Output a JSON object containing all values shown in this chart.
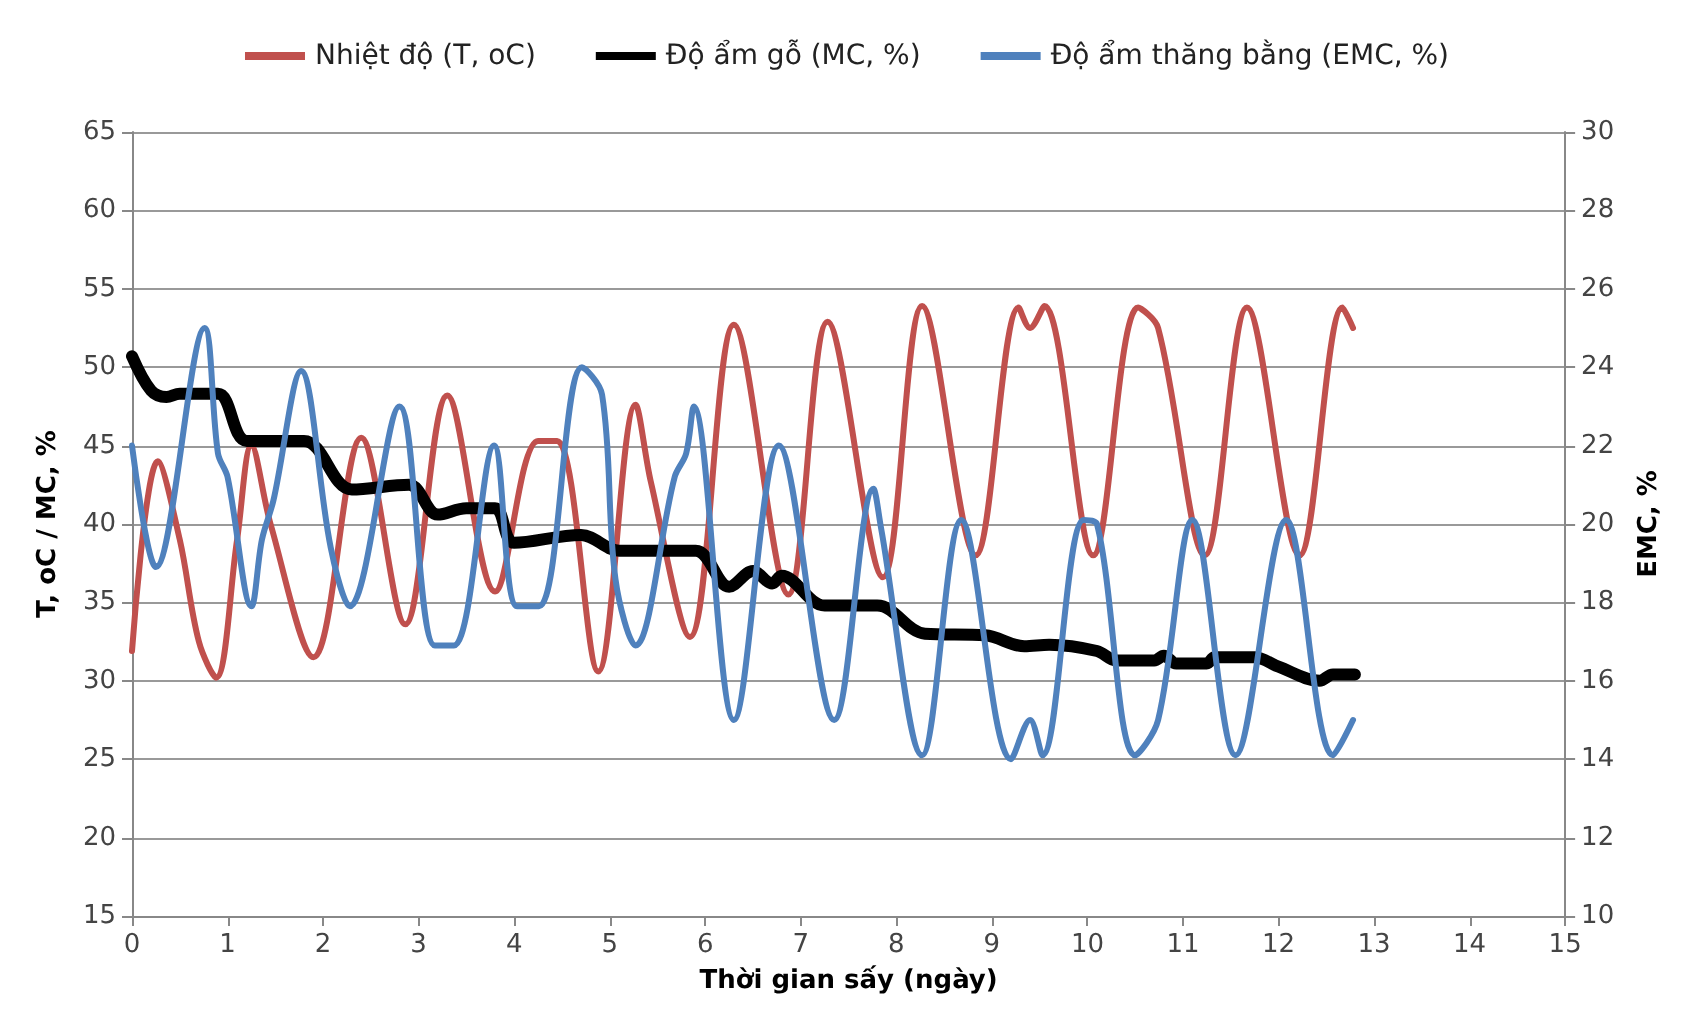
{
  "chart_data": {
    "type": "line",
    "xlabel": "Thời gian sấy (ngày)",
    "ylabel": "T, oC / MC, %",
    "y2label": "EMC, %",
    "xlim": [
      0,
      15
    ],
    "xticks": [
      0,
      1,
      2,
      3,
      4,
      5,
      6,
      7,
      8,
      9,
      10,
      11,
      12,
      13,
      14,
      15
    ],
    "ylim": [
      15,
      65
    ],
    "yticks": [
      15,
      20,
      25,
      30,
      35,
      40,
      45,
      50,
      55,
      60,
      65
    ],
    "y2lim": [
      10,
      30
    ],
    "y2ticks": [
      10,
      12,
      14,
      16,
      18,
      20,
      22,
      24,
      26,
      28,
      30
    ],
    "grid": "y",
    "legend": "top",
    "marker": "none",
    "line_style": "solid",
    "series": [
      {
        "name": "Nhiệt độ (T, oC)",
        "color": "#c0504d",
        "x": [
          0,
          0.27,
          0.5,
          0.7,
          0.88,
          1.1,
          1.25,
          1.45,
          1.9,
          2.4,
          2.86,
          3.3,
          3.8,
          4.25,
          4.45,
          4.88,
          5.27,
          5.43,
          5.84,
          6.3,
          6.87,
          7.28,
          7.86,
          8.27,
          8.83,
          9.28,
          9.4,
          9.55,
          10.06,
          10.53,
          10.74,
          11.23,
          11.67,
          12.22,
          12.67,
          12.78
        ],
        "values": [
          31.9,
          44,
          39,
          32.5,
          30.2,
          39,
          45,
          40,
          31.5,
          45.5,
          33.6,
          48.2,
          35.7,
          45.3,
          45.3,
          30.6,
          47.6,
          42.7,
          32.8,
          52.7,
          35.5,
          52.9,
          36.6,
          53.9,
          38,
          53.8,
          52.5,
          53.9,
          38,
          53.8,
          52.5,
          38,
          53.8,
          38,
          53.8,
          52.5
        ]
      },
      {
        "name": "Độ ẩm gỗ (MC, %)",
        "color": "#000000",
        "x": [
          0,
          0.2,
          0.36,
          0.5,
          0.9,
          1.2,
          1.8,
          2.3,
          2.9,
          3.2,
          3.5,
          3.8,
          4.0,
          4.7,
          5.1,
          5.9,
          6.25,
          6.5,
          6.7,
          6.8,
          7.25,
          7.8,
          8.3,
          8.93,
          9.34,
          9.6,
          10.1,
          10.3,
          10.7,
          10.8,
          10.93,
          11.25,
          11.33,
          11.75,
          12.0,
          12.43,
          12.57,
          12.8
        ],
        "values": [
          50.7,
          48.5,
          48.1,
          48.3,
          48.3,
          45.3,
          45.3,
          42.2,
          42.5,
          40.6,
          41,
          41,
          38.8,
          39.3,
          38.3,
          38.3,
          36,
          37,
          36.2,
          36.7,
          34.8,
          34.8,
          33,
          32.9,
          32.2,
          32.3,
          31.9,
          31.3,
          31.3,
          31.6,
          31.1,
          31.1,
          31.5,
          31.5,
          30.9,
          30,
          30.4,
          30.4
        ]
      },
      {
        "name": "Độ ẩm thăng bằng (EMC, %)",
        "color": "#4f81bd",
        "axis": "y2",
        "x": [
          0,
          0.25,
          0.76,
          0.9,
          1.0,
          1.25,
          1.36,
          1.48,
          1.77,
          2.08,
          2.28,
          2.8,
          3.17,
          3.37,
          3.79,
          4.03,
          4.26,
          4.71,
          4.92,
          5.06,
          5.27,
          5.68,
          5.8,
          5.88,
          6.3,
          6.77,
          7.35,
          7.76,
          7.84,
          8.27,
          8.68,
          9.2,
          9.4,
          9.53,
          9.96,
          10.1,
          10.5,
          10.74,
          11.1,
          11.55,
          12.08,
          12.57,
          12.78
        ],
        "values": [
          22,
          18.9,
          25,
          21.8,
          21.2,
          17.9,
          19.6,
          20.6,
          23.9,
          19.4,
          17.9,
          23,
          16.9,
          16.9,
          22,
          17.9,
          17.9,
          24,
          23.3,
          18.6,
          16.9,
          21.2,
          21.8,
          23,
          15,
          22,
          15,
          20.9,
          19.9,
          14.1,
          20.1,
          14,
          15,
          14.1,
          20.1,
          20,
          14.1,
          15,
          20.1,
          14.1,
          20.1,
          14.1,
          15
        ]
      }
    ]
  }
}
